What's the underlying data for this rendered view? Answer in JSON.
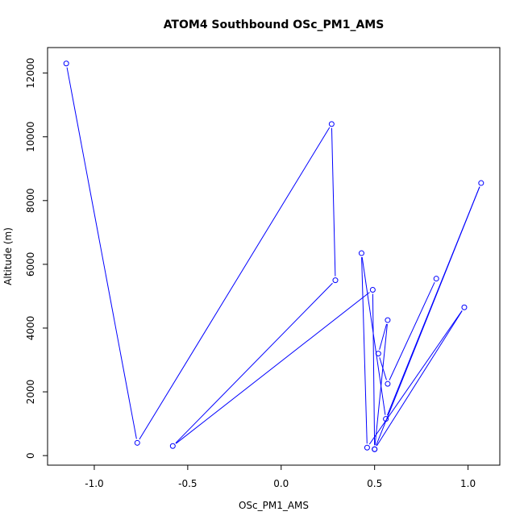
{
  "chart_data": {
    "type": "line",
    "title": "ATOM4 Southbound OSc_PM1_AMS",
    "xlabel": "OSc_PM1_AMS",
    "ylabel": "Altitude (m)",
    "xlim": [
      -1.25,
      1.17
    ],
    "ylim": [
      -300,
      12800
    ],
    "x_ticks": [
      -1.0,
      -0.5,
      0.0,
      0.5,
      1.0
    ],
    "x_tick_labels": [
      "-1.0",
      "-0.5",
      "0.0",
      "0.5",
      "1.0"
    ],
    "y_ticks": [
      0,
      2000,
      4000,
      6000,
      8000,
      10000,
      12000
    ],
    "y_tick_labels": [
      "0",
      "2000",
      "4000",
      "6000",
      "8000",
      "10000",
      "12000"
    ],
    "series": [
      {
        "color": "#0000ff",
        "marker": "open-circle",
        "x": [
          -1.15,
          -0.77,
          0.27,
          0.29,
          -0.58,
          0.49,
          0.5,
          0.98,
          0.46,
          0.43,
          0.56,
          1.07,
          0.5,
          0.57,
          0.52,
          0.57,
          0.83
        ],
        "y": [
          12300,
          400,
          10400,
          5500,
          300,
          5200,
          200,
          4650,
          250,
          6350,
          1150,
          8550,
          200,
          4250,
          3200,
          2250,
          5550
        ]
      }
    ]
  }
}
